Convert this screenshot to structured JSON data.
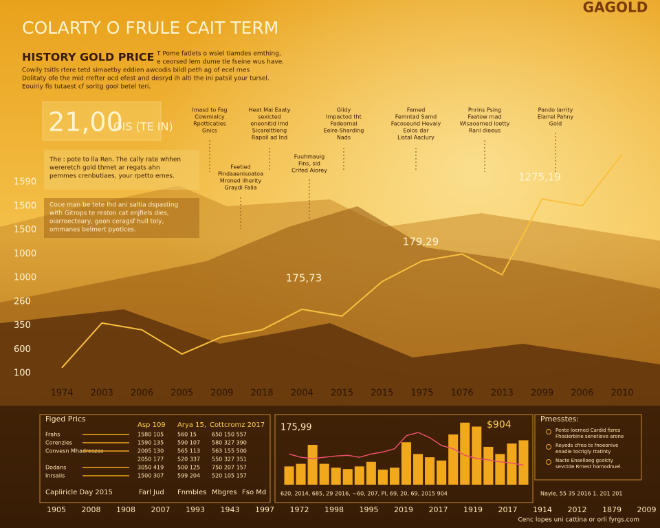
{
  "brand": "GAGOLD",
  "title": "COLARTY O FRULE CAIT TERM",
  "intro": {
    "heading": "HISTORY GOLD PRICE",
    "lines": [
      "T Pome fatlets o wsiel tiamdes emthing,",
      "e ceorsed lem dume tle fseine wus have.",
      "Cowily tsitls rtere tetd simaetby eddien awcodis bildl peth ag of ecel rnes",
      "Dolitaty ofe the mid rrefter ocd efest and desryd ih alti the ini patsil your tursel.",
      "Eouiriy fis tutaest cf soritg gool betel teri."
    ]
  },
  "highlight": {
    "value": "21,00",
    "unit": "OIS (TE IN)"
  },
  "events": [
    [
      "Imasd to Fag",
      "Cowmialcy",
      "Rpotticaties",
      "Gnics"
    ],
    [
      "Heat Mai Eaaty",
      "sexicted",
      "eneonitid lmd",
      "Sicarelttieng",
      "Rapoil ad Ind"
    ],
    [
      "Glidy",
      "Impactod tht",
      "Fadeornal",
      "Eelre-Sharding",
      "Nads"
    ],
    [
      "Famed",
      "Femntad Samd",
      "Facoseund Hevaly",
      "Eolos dar",
      "Listal Aaclury"
    ],
    [
      "Pnrins Psing",
      "Faatow rnad",
      "Wisaoarned loetty",
      "Ranl dieeus"
    ],
    [
      "Pando Iarrity",
      "Elarrel Pahny",
      "Gold"
    ],
    [
      "Feetied",
      "Pindaaenisoatoa",
      "Mroned ilherity",
      "Graydi Falia"
    ],
    [
      "Fuuhmauig",
      "Fins, sid",
      "Crifed Aiorey"
    ]
  ],
  "notes": [
    [
      "The : pote to lla Ren. The cally rate whhen",
      "wereretch gold thmet ar regats ahn",
      "pemmes crenbutiaes, your rpetto ernes."
    ],
    [
      "Coce man be tete lhd ani saltia dspasting",
      "with Gitrops te reston cat enjfiels dies,",
      "oiarroecteary, goon ceragsf hull toly,",
      "ommanes belmert pyotices."
    ]
  ],
  "chart_data": [
    {
      "type": "line",
      "categories": [
        "1974",
        "2003",
        "2006",
        "2005",
        "2009",
        "2018",
        "2004",
        "2015",
        "2015",
        "1975",
        "1076",
        "2013",
        "2099",
        "2006",
        "2010"
      ],
      "values": [
        143,
        491,
        438,
        250,
        384,
        438,
        598,
        545,
        813,
        974,
        1027,
        866,
        1456,
        1402,
        1804
      ],
      "color": "#f7c040",
      "ylim": [
        100,
        1800
      ],
      "y_labels": [
        "1590",
        "1500",
        "1500",
        "1000",
        "1000",
        "260",
        "350",
        "600",
        "100"
      ],
      "annotations": [
        "1275,19",
        "179,29",
        "175,73"
      ]
    },
    {
      "type": "bar",
      "title": "175,99",
      "label": "$904",
      "x_labels": "620, 2014, 685, 29 2016, ~60, 207, PI, 69, 20, 69, 2015 904",
      "ylim": [
        0,
        100
      ],
      "series": [
        {
          "mark": "bar",
          "color": "#f2a81c",
          "values": [
            28,
            32,
            61,
            32,
            26,
            24,
            28,
            35,
            23,
            26,
            65,
            47,
            42,
            37,
            77,
            95,
            89,
            58,
            47,
            63,
            68
          ]
        },
        {
          "mark": "line",
          "color": "#e8506a",
          "values": [
            47,
            42,
            40,
            42,
            44,
            45,
            42,
            47,
            50,
            55,
            75,
            80,
            72,
            60,
            55,
            45,
            40,
            38,
            35,
            33,
            30
          ]
        }
      ]
    }
  ],
  "table": {
    "title": "Figed Prics",
    "headers": [
      "Asp 109",
      "Arya 15,",
      "Cottcromz 2017"
    ],
    "rows": [
      [
        "Frahs",
        "1580 105",
        "560 15",
        "650 150 557"
      ],
      [
        "Corenzies",
        "1590 135",
        "590 107",
        "580 327 390"
      ],
      [
        "Convesn Mhadreszas",
        "2005 130",
        "565 113",
        "563 155 500"
      ],
      [
        "",
        "2050 177",
        "520 337",
        "550 327 351"
      ],
      [
        "Dodans",
        "3050 419",
        "500 125",
        "750 207 157"
      ],
      [
        "Inrsaiis",
        "1500 307",
        "599 204",
        "520 105 157"
      ]
    ],
    "footer": [
      "Capliricle Day 2015",
      "Farl Jud",
      "Fnmbles",
      "Mbgres",
      "Fso Md"
    ]
  },
  "panel": {
    "title": "Pmesstes:",
    "items": [
      [
        "Pente loerned Cardid fizres",
        "Fhosierbine senetiove arone"
      ],
      [
        "Reyeds cfrea te fnoeonive",
        "enadie tocrigly rtatinty"
      ],
      [
        "Nacte Enselloeg gcelcty",
        "sevctde Rrnest hornodnuel."
      ]
    ],
    "footnote": "Nayle, 55 35 2016 1, 201 201"
  },
  "footer": {
    "years": [
      "1905",
      "2008",
      "1908",
      "2007",
      "1993",
      "1943",
      "1997",
      "1972",
      "1998",
      "1995",
      "2019",
      "2017",
      "1919",
      "2017",
      "1914",
      "2012",
      "1879",
      "2009"
    ],
    "credit": "Cenc lopes uni cattina or orli fyrgs.com"
  }
}
